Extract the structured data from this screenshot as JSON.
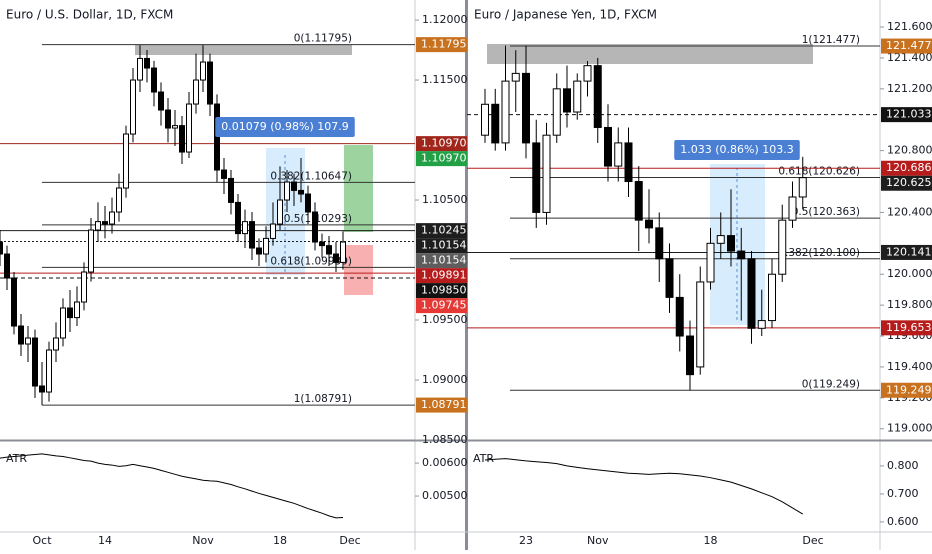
{
  "chart_data": [
    {
      "type": "candlestick",
      "title": "Euro / U.S. Dollar, 1D, FXCM",
      "categories": [
        null,
        null,
        null,
        null,
        null,
        null,
        "Oct",
        null,
        null,
        null,
        null,
        null,
        null,
        null,
        null,
        "14",
        null,
        null,
        null,
        null,
        null,
        null,
        null,
        null,
        null,
        null,
        null,
        null,
        null,
        "Nov",
        null,
        null,
        null,
        null,
        null,
        null,
        null,
        null,
        null,
        null,
        "18",
        null,
        null,
        null,
        null,
        null,
        null,
        null,
        null,
        null,
        "Dec",
        null,
        null,
        null,
        null,
        null,
        null,
        null,
        null,
        null
      ],
      "open": [
        1.1015,
        1.1005,
        1.0985,
        1.0945,
        1.093,
        1.0935,
        1.0895,
        1.089,
        1.0925,
        1.0935,
        1.096,
        1.0952,
        1.0965,
        1.099,
        1.1025,
        1.1032,
        1.103,
        1.104,
        1.106,
        1.1105,
        1.115,
        1.1168,
        1.116,
        1.114,
        1.1125,
        1.111,
        1.1112,
        1.109,
        1.113,
        1.115,
        1.1165,
        1.113,
        1.1075,
        1.1068,
        1.1048,
        1.1022,
        1.1032,
        1.101,
        1.1005,
        1.1018,
        1.103,
        1.105,
        1.1065,
        1.1058,
        1.1055,
        1.104,
        1.1015,
        1.1012,
        1.1005,
        1.0998,
        null,
        null,
        null,
        null,
        null,
        null,
        null,
        null,
        null,
        null
      ],
      "high": [
        1.1025,
        1.1012,
        1.099,
        1.0955,
        1.0945,
        1.0942,
        1.0915,
        1.0932,
        1.0948,
        1.0968,
        1.0975,
        1.0978,
        1.0998,
        1.1035,
        1.1048,
        1.1045,
        1.1052,
        1.1072,
        1.1112,
        1.116,
        1.1179,
        1.1175,
        1.1166,
        1.1148,
        1.1135,
        1.1125,
        1.112,
        1.114,
        1.1172,
        1.1179,
        1.1172,
        1.1138,
        1.1085,
        1.1075,
        1.1055,
        1.1042,
        1.104,
        1.1018,
        1.1028,
        1.1048,
        1.1078,
        1.1075,
        1.1072,
        1.1085,
        1.1062,
        1.1048,
        1.1022,
        1.102,
        1.1015,
        1.1024,
        null,
        null,
        null,
        null,
        null,
        null,
        null,
        null,
        null,
        null
      ],
      "low": [
        1.0995,
        1.0975,
        1.0938,
        1.092,
        1.0915,
        1.0885,
        1.08791,
        1.0882,
        1.0915,
        1.0928,
        1.094,
        1.0945,
        1.0958,
        1.0982,
        1.1015,
        1.1018,
        1.1022,
        1.1032,
        1.1052,
        1.1098,
        1.114,
        1.1148,
        1.1128,
        1.1112,
        1.1098,
        1.1095,
        1.108,
        1.1085,
        1.1122,
        1.114,
        1.112,
        1.1065,
        1.1055,
        1.1038,
        1.1015,
        1.101,
        1.1,
        1.0995,
        1.0998,
        1.1012,
        1.1025,
        1.104,
        1.1045,
        1.1048,
        1.103,
        1.1008,
        1.1002,
        1.0995,
        1.099,
        1.0992,
        null,
        null,
        null,
        null,
        null,
        null,
        null,
        null,
        null,
        null
      ],
      "close": [
        1.1005,
        1.0985,
        1.0945,
        1.093,
        1.0935,
        1.0895,
        1.089,
        1.0925,
        1.0935,
        1.096,
        1.0952,
        1.0965,
        1.099,
        1.1025,
        1.1032,
        1.103,
        1.104,
        1.106,
        1.1105,
        1.115,
        1.1168,
        1.116,
        1.114,
        1.1125,
        1.111,
        1.1112,
        1.109,
        1.113,
        1.115,
        1.1165,
        1.113,
        1.1075,
        1.1068,
        1.1048,
        1.1022,
        1.1032,
        1.101,
        1.1005,
        1.1018,
        1.103,
        1.105,
        1.1065,
        1.1058,
        1.1055,
        1.104,
        1.1015,
        1.1012,
        1.1005,
        1.0998,
        1.1015,
        null,
        null,
        null,
        null,
        null,
        null,
        null,
        null,
        null,
        null
      ],
      "up_color": "#ffffff",
      "down_color": "#000000",
      "ylim": [
        1.085,
        1.12167
      ],
      "yticks": [
        {
          "value": 1.12,
          "label": "1.12000"
        },
        {
          "value": 1.115,
          "label": "1.11500"
        },
        {
          "value": 1.105,
          "label": "1.10500"
        },
        {
          "value": 1.095,
          "label": "1.09500"
        },
        {
          "value": 1.09,
          "label": "1.09000"
        },
        {
          "value": 1.085,
          "label": "1.08500"
        }
      ],
      "levels": [
        {
          "value": 1.11795,
          "label": "0(1.11795)"
        },
        {
          "value": 1.10647,
          "label": "0.382(1.10647)"
        },
        {
          "value": 1.10293,
          "label": "0.5(1.10293)"
        },
        {
          "value": 1.09939,
          "label": "0.618(1.09939)"
        },
        {
          "value": 1.08791,
          "label": "1(1.08791)"
        }
      ],
      "price_tags": [
        {
          "value": 1.11795,
          "label": "1.11795",
          "color": "#c8711e"
        },
        {
          "value": 1.1097,
          "label": "1.10970",
          "color": "#a0261c",
          "line": "solid"
        },
        {
          "value": 1.1097,
          "label": "1.10970",
          "color": "#22a046"
        },
        {
          "value": 1.10245,
          "label": "1.10245",
          "color": "#1e1e1e",
          "line": "solid"
        },
        {
          "value": 1.10154,
          "label": "1.10154",
          "color": "#1e1e1e",
          "line": "dotted"
        },
        {
          "value": 1.10154,
          "label": "1.10154",
          "color": "#5d5d5d"
        },
        {
          "value": 1.09891,
          "label": "1.09891",
          "color": "#b71c1c",
          "line": "solid"
        },
        {
          "value": 1.0985,
          "label": "1.09850",
          "color": "#111111",
          "line": "dashed"
        },
        {
          "value": 1.09745,
          "label": "1.09745",
          "color": "#e53935"
        },
        {
          "value": 1.08791,
          "label": "1.08791",
          "color": "#c8711e"
        }
      ],
      "measure_label": "0.01079 (0.98%) 107.9",
      "indicator": {
        "name": "ATR",
        "color": "#000000",
        "values": [
          0.00615,
          0.00618,
          0.0062,
          0.00622,
          0.00624,
          0.00626,
          0.00628,
          0.00625,
          0.00622,
          0.0062,
          0.00616,
          0.00612,
          0.00608,
          0.00606,
          0.006,
          0.00596,
          0.00594,
          0.0059,
          0.00592,
          0.00596,
          0.00592,
          0.00588,
          0.00584,
          0.00578,
          0.00572,
          0.00566,
          0.0056,
          0.00556,
          0.00552,
          0.00548,
          0.00546,
          0.00545,
          0.0054,
          0.00535,
          0.00528,
          0.00522,
          0.00515,
          0.00508,
          0.00502,
          0.00496,
          0.0049,
          0.00484,
          0.00478,
          0.0047,
          0.00462,
          0.00455,
          0.00448,
          0.0044,
          0.00434,
          0.00435,
          null,
          null,
          null,
          null,
          null,
          null,
          null,
          null,
          null,
          null
        ],
        "ylim": [
          0.00391,
          0.00667
        ],
        "yticks": [
          {
            "value": 0.006,
            "label": "0.00600"
          },
          {
            "value": 0.005,
            "label": "0.00500"
          }
        ]
      }
    },
    {
      "type": "candlestick",
      "title": "Euro / Japanese Yen, 1D, FXCM",
      "categories": [
        null,
        null,
        null,
        null,
        "23",
        null,
        null,
        null,
        null,
        null,
        null,
        "Nov",
        null,
        null,
        null,
        null,
        null,
        null,
        null,
        null,
        null,
        null,
        "18",
        null,
        null,
        null,
        null,
        null,
        null,
        null,
        null,
        null,
        "Dec",
        null,
        null,
        null,
        null,
        null,
        null
      ],
      "open": [
        120.9,
        121.1,
        120.85,
        121.25,
        121.3,
        120.85,
        120.4,
        120.9,
        121.2,
        121.05,
        121.25,
        121.35,
        120.95,
        120.7,
        120.85,
        120.6,
        120.35,
        120.3,
        120.1,
        119.85,
        119.6,
        119.4,
        119.95,
        120.2,
        120.25,
        120.15,
        120.1,
        119.65,
        119.7,
        120.0,
        120.35,
        120.5,
        null,
        null,
        null,
        null,
        null,
        null,
        null
      ],
      "high": [
        121.2,
        121.2,
        121.48,
        121.45,
        121.48,
        121.0,
        120.98,
        121.3,
        121.35,
        121.3,
        121.38,
        121.4,
        121.1,
        120.95,
        120.95,
        120.7,
        120.55,
        120.4,
        120.2,
        120.0,
        119.7,
        120.05,
        120.3,
        120.4,
        120.55,
        120.3,
        120.15,
        119.9,
        120.1,
        120.45,
        120.6,
        120.76,
        null,
        null,
        null,
        null,
        null,
        null,
        null
      ],
      "low": [
        120.85,
        120.8,
        120.8,
        121.05,
        120.75,
        120.3,
        120.32,
        120.85,
        120.95,
        121.0,
        121.15,
        120.85,
        120.6,
        120.6,
        120.5,
        120.15,
        120.2,
        119.95,
        119.75,
        119.5,
        119.249,
        119.35,
        119.9,
        120.1,
        120.05,
        119.7,
        119.55,
        119.6,
        119.65,
        119.95,
        120.3,
        120.42,
        null,
        null,
        null,
        null,
        null,
        null,
        null
      ],
      "close": [
        121.1,
        120.85,
        121.25,
        121.3,
        120.85,
        120.4,
        120.9,
        121.2,
        121.05,
        121.25,
        121.35,
        120.95,
        120.7,
        120.85,
        120.6,
        120.35,
        120.3,
        120.1,
        119.85,
        119.6,
        119.35,
        119.95,
        120.2,
        120.25,
        120.15,
        120.1,
        119.65,
        119.7,
        120.0,
        120.35,
        120.5,
        120.625,
        null,
        null,
        null,
        null,
        null,
        null,
        null
      ],
      "up_color": "#ffffff",
      "down_color": "#000000",
      "ylim": [
        118.927,
        121.775
      ],
      "yticks": [
        {
          "value": 121.6,
          "label": "121.600"
        },
        {
          "value": 121.4,
          "label": "121.400"
        },
        {
          "value": 121.2,
          "label": "121.200"
        },
        {
          "value": 120.8,
          "label": "120.800"
        },
        {
          "value": 120.4,
          "label": "120.400"
        },
        {
          "value": 120,
          "label": "120.000"
        },
        {
          "value": 119.8,
          "label": "119.800"
        },
        {
          "value": 119.6,
          "label": "119.600"
        },
        {
          "value": 119.4,
          "label": "119.400"
        },
        {
          "value": 119.2,
          "label": "119.200"
        },
        {
          "value": 119,
          "label": "119.000"
        }
      ],
      "levels": [
        {
          "value": 121.477,
          "label": "1(121.477)"
        },
        {
          "value": 120.626,
          "label": "0.618(120.626)"
        },
        {
          "value": 120.363,
          "label": "0.5(120.363)"
        },
        {
          "value": 120.1,
          "label": "0.382(120.100)"
        },
        {
          "value": 119.249,
          "label": "0(119.249)"
        }
      ],
      "price_tags": [
        {
          "value": 121.477,
          "label": "121.477",
          "color": "#c8711e"
        },
        {
          "value": 121.033,
          "label": "121.033",
          "color": "#111111",
          "line": "dashed"
        },
        {
          "value": 120.686,
          "label": "120.686",
          "color": "#b71c1c",
          "line": "solid"
        },
        {
          "value": 120.625,
          "label": "120.625",
          "color": "#1e1e1e"
        },
        {
          "value": 120.141,
          "label": "120.141",
          "color": "#1e1e1e",
          "line": "solid"
        },
        {
          "value": 119.653,
          "label": "119.653",
          "color": "#b71c1c",
          "line": "solid"
        },
        {
          "value": 119.249,
          "label": "119.249",
          "color": "#c8711e"
        }
      ],
      "measure_label": "1.033 (0.86%) 103.3",
      "indicator": {
        "name": "ATR",
        "color": "#000000",
        "values": [
          0.821,
          0.824,
          0.826,
          0.822,
          0.818,
          0.815,
          0.812,
          0.808,
          0.8,
          0.795,
          0.79,
          0.786,
          0.782,
          0.778,
          0.774,
          0.772,
          0.77,
          0.772,
          0.774,
          0.772,
          0.768,
          0.764,
          0.758,
          0.75,
          0.742,
          0.73,
          0.718,
          0.704,
          0.69,
          0.672,
          0.65,
          0.628,
          null,
          null,
          null,
          null,
          null,
          null,
          null
        ],
        "ylim": [
          0.564,
          0.889
        ],
        "yticks": [
          {
            "value": 0.8,
            "label": "0.800"
          },
          {
            "value": 0.7,
            "label": "0.700"
          },
          {
            "value": 0.6,
            "label": "0.600"
          }
        ]
      }
    }
  ]
}
